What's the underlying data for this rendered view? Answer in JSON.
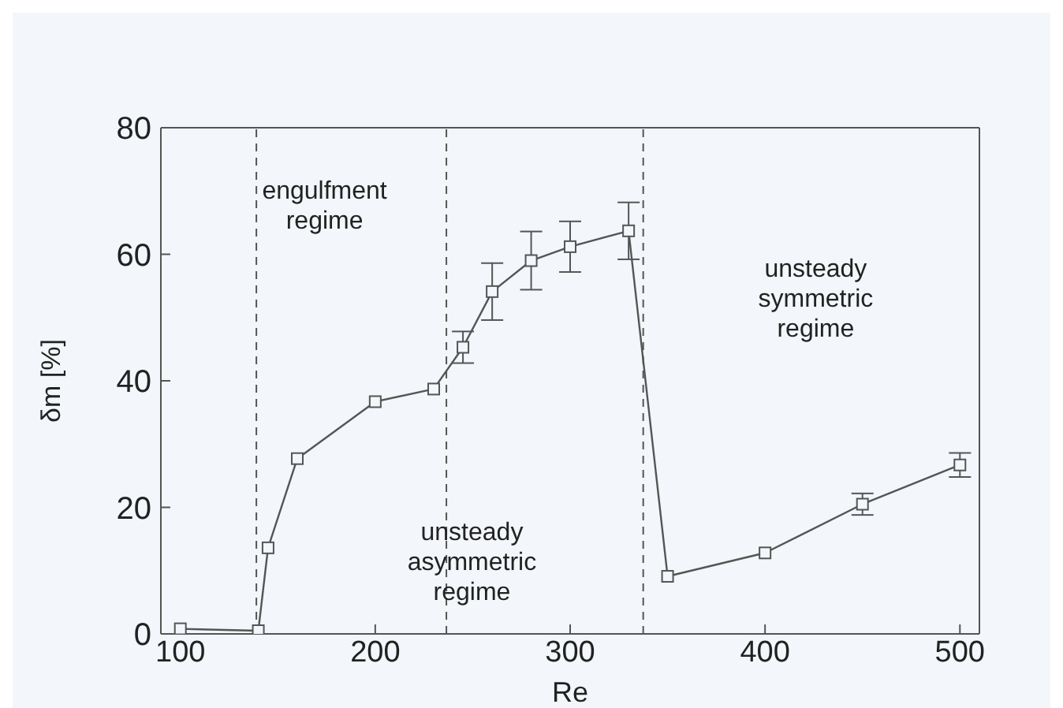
{
  "chart_data": {
    "type": "line",
    "xlabel": "Re",
    "ylabel": "δm [%]",
    "x": [
      100,
      140,
      145,
      160,
      200,
      230,
      245,
      260,
      280,
      300,
      330,
      350,
      400,
      450,
      500
    ],
    "series": [
      {
        "color": "#555555",
        "values": [
          0.8,
          0.5,
          13.6,
          27.7,
          36.7,
          38.7,
          45.3,
          54.1,
          59,
          61.2,
          63.7,
          9.1,
          12.8,
          20.5,
          26.7
        ],
        "errors": [
          null,
          null,
          null,
          null,
          null,
          null,
          2.5,
          4.5,
          4.6,
          4,
          4.5,
          null,
          null,
          1.7,
          1.9
        ]
      }
    ],
    "marker": "square",
    "line_style": "solid",
    "xlim": [
      90,
      510
    ],
    "xticks": [
      100,
      200,
      300,
      400,
      500
    ],
    "ylim": [
      0,
      80
    ],
    "yticks": [
      0,
      20,
      40,
      60,
      80
    ],
    "ref_lines": [
      {
        "axis": "x",
        "value": 139,
        "line_style": "dashed",
        "color": "#555555"
      },
      {
        "axis": "x",
        "value": 236.5,
        "line_style": "dashed",
        "color": "#555555"
      },
      {
        "axis": "x",
        "value": 337.5,
        "line_style": "dashed",
        "color": "#555555"
      }
    ],
    "annotations": [
      "engulfment\nregime",
      "unsteady\nasymmetric\nregime",
      "unsteady\nsymmetric\nregime"
    ]
  }
}
